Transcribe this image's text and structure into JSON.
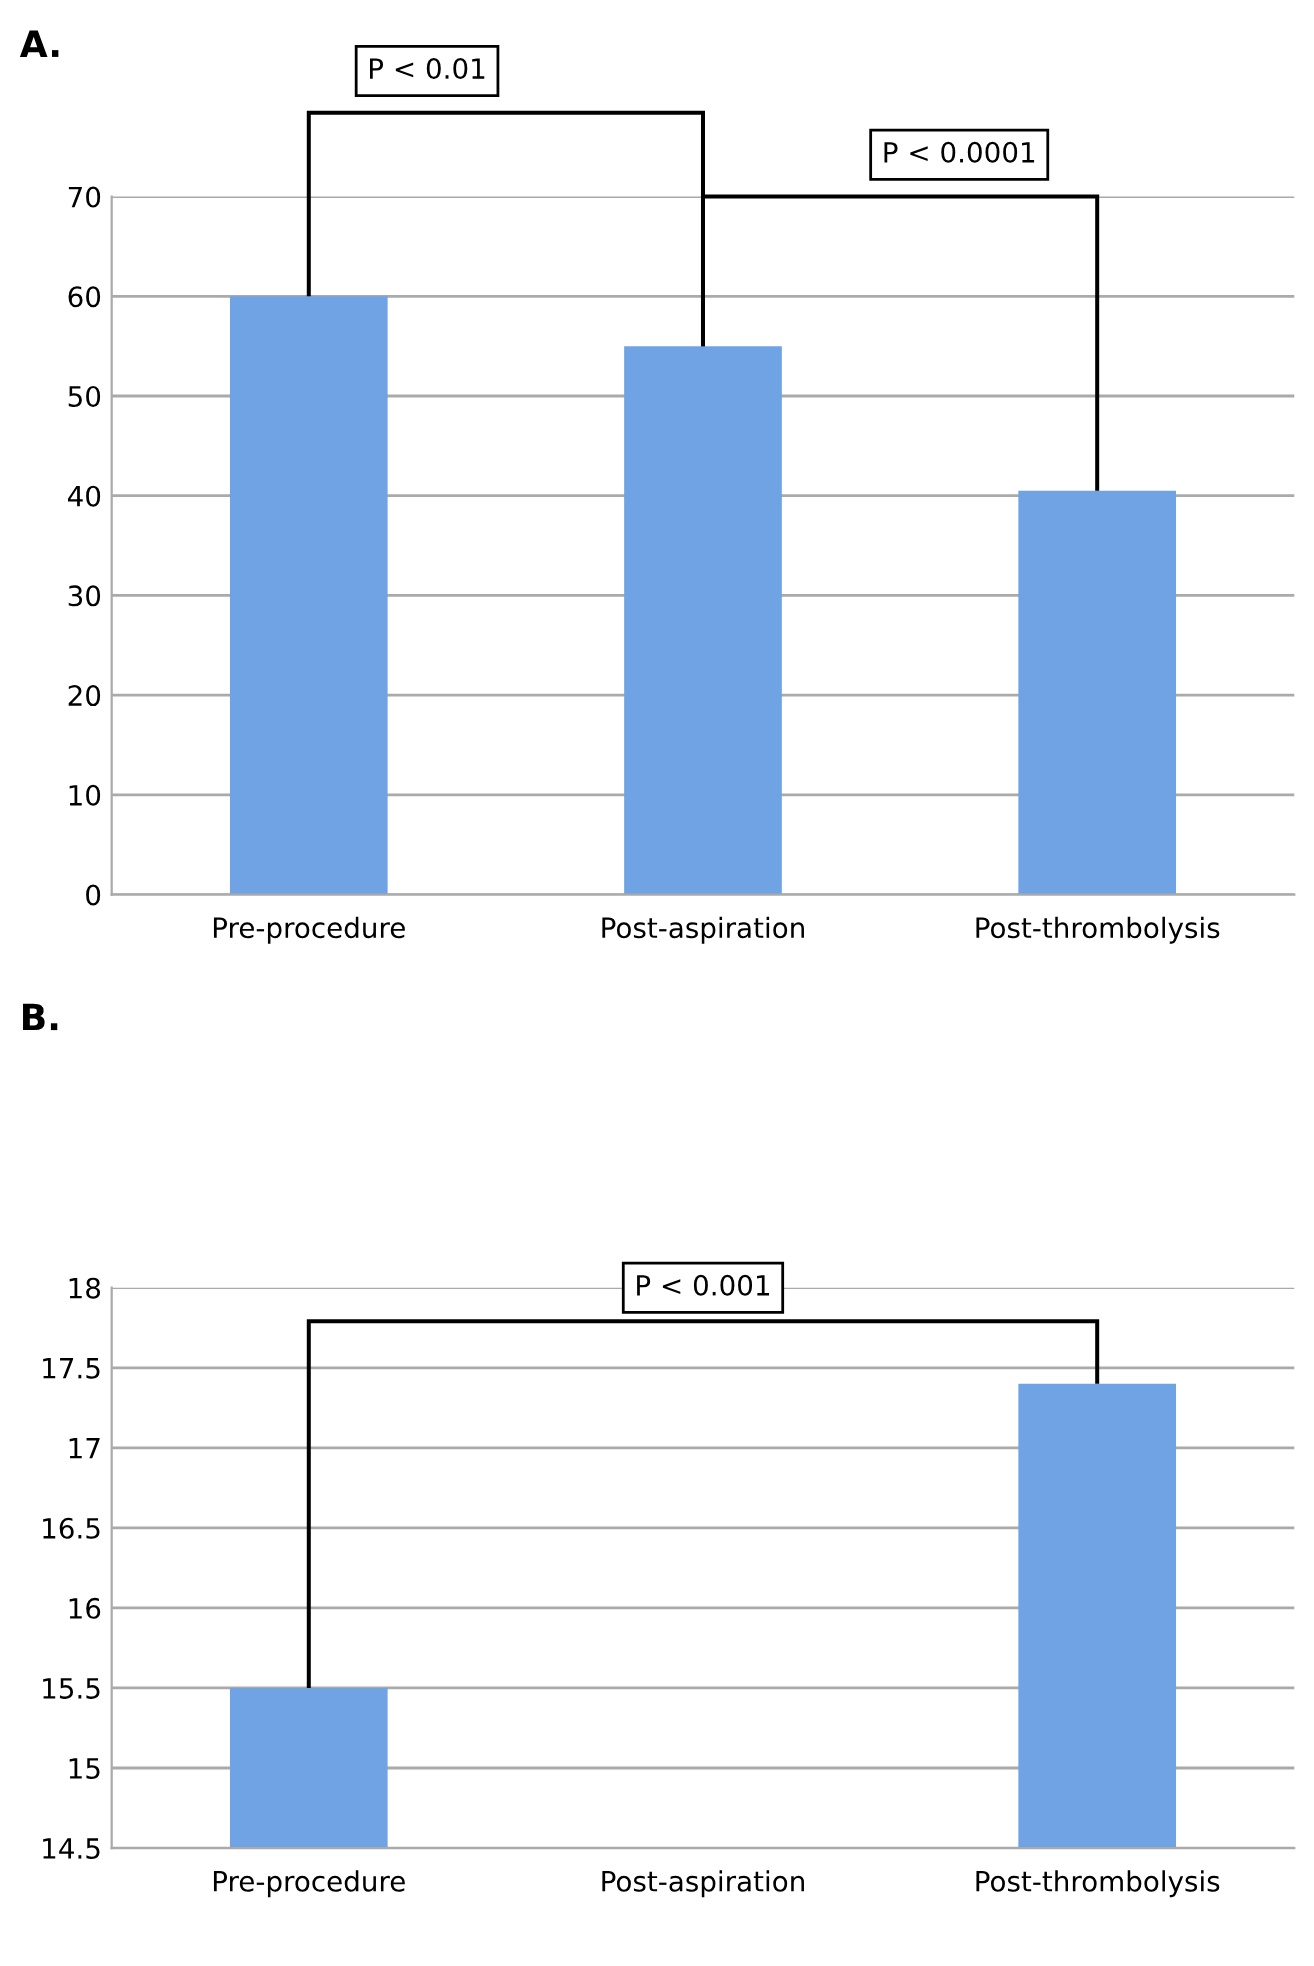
{
  "chart_data": [
    {
      "type": "bar",
      "title": "A.",
      "categories": [
        "Pre-procedure",
        "Post-aspiration",
        "Post-thrombolysis"
      ],
      "values": [
        60,
        55,
        40.5
      ],
      "color": "#6fa3e3",
      "ylim": [
        0,
        70
      ],
      "yticks": [
        0,
        10,
        20,
        30,
        40,
        50,
        60,
        70
      ],
      "grid": "y",
      "annotations": [
        "P < 0.01",
        "P < 0.0001"
      ]
    },
    {
      "type": "bar",
      "title": "B.",
      "categories": [
        "Pre-procedure",
        "Post-aspiration",
        "Post-thrombolysis"
      ],
      "values": [
        15.5,
        null,
        17.4
      ],
      "color": "#6fa3e3",
      "ylim": [
        14.5,
        18
      ],
      "yticks": [
        14.5,
        15,
        15.5,
        16,
        16.5,
        17,
        17.5,
        18
      ],
      "grid": "y",
      "annotations": [
        "P < 0.001"
      ]
    }
  ]
}
